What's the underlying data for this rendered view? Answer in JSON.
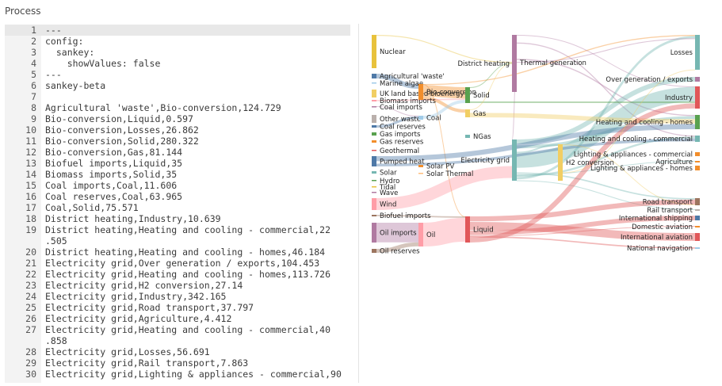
{
  "header": {
    "title": "Process"
  },
  "editor": {
    "lines": [
      {
        "n": "1",
        "text": "---"
      },
      {
        "n": "2",
        "text": "config:"
      },
      {
        "n": "3",
        "text": "  sankey:"
      },
      {
        "n": "4",
        "text": "    showValues: false"
      },
      {
        "n": "5",
        "text": "---"
      },
      {
        "n": "6",
        "text": "sankey-beta"
      },
      {
        "n": "7",
        "text": ""
      },
      {
        "n": "8",
        "text": "Agricultural 'waste',Bio-conversion,124.729"
      },
      {
        "n": "9",
        "text": "Bio-conversion,Liquid,0.597"
      },
      {
        "n": "10",
        "text": "Bio-conversion,Losses,26.862"
      },
      {
        "n": "11",
        "text": "Bio-conversion,Solid,280.322"
      },
      {
        "n": "12",
        "text": "Bio-conversion,Gas,81.144"
      },
      {
        "n": "13",
        "text": "Biofuel imports,Liquid,35"
      },
      {
        "n": "14",
        "text": "Biomass imports,Solid,35"
      },
      {
        "n": "15",
        "text": "Coal imports,Coal,11.606"
      },
      {
        "n": "16",
        "text": "Coal reserves,Coal,63.965"
      },
      {
        "n": "17",
        "text": "Coal,Solid,75.571"
      },
      {
        "n": "18",
        "text": "District heating,Industry,10.639"
      },
      {
        "n": "19",
        "text": "District heating,Heating and cooling - commercial,22"
      },
      {
        "n": "",
        "text": ".505"
      },
      {
        "n": "20",
        "text": "District heating,Heating and cooling - homes,46.184"
      },
      {
        "n": "21",
        "text": "Electricity grid,Over generation / exports,104.453"
      },
      {
        "n": "22",
        "text": "Electricity grid,Heating and cooling - homes,113.726"
      },
      {
        "n": "23",
        "text": "Electricity grid,H2 conversion,27.14"
      },
      {
        "n": "24",
        "text": "Electricity grid,Industry,342.165"
      },
      {
        "n": "25",
        "text": "Electricity grid,Road transport,37.797"
      },
      {
        "n": "26",
        "text": "Electricity grid,Agriculture,4.412"
      },
      {
        "n": "27",
        "text": "Electricity grid,Heating and cooling - commercial,40"
      },
      {
        "n": "",
        "text": ".858"
      },
      {
        "n": "28",
        "text": "Electricity grid,Losses,56.691"
      },
      {
        "n": "29",
        "text": "Electricity grid,Rail transport,7.863"
      },
      {
        "n": "30",
        "text": "Electricity grid,Lighting & appliances - commercial,90"
      }
    ]
  },
  "sankey": {
    "nodes": [
      {
        "name": "Nuclear",
        "color": "#e8c23c"
      },
      {
        "name": "Agricultural 'waste'",
        "color": "#4e79a7"
      },
      {
        "name": "Marine algae",
        "color": "#a0cbe8"
      },
      {
        "name": "UK land based bioenergy",
        "color": "#f1ce63"
      },
      {
        "name": "Biomass imports",
        "color": "#ff9da7"
      },
      {
        "name": "Coal imports",
        "color": "#b07aa1"
      },
      {
        "name": "Other waste",
        "color": "#bab0ac"
      },
      {
        "name": "Coal reserves",
        "color": "#4e79a7"
      },
      {
        "name": "Gas imports",
        "color": "#59a14f"
      },
      {
        "name": "Gas reserves",
        "color": "#f28e2b"
      },
      {
        "name": "Geothermal",
        "color": "#e15759"
      },
      {
        "name": "Pumped heat",
        "color": "#4e79a7"
      },
      {
        "name": "Solar",
        "color": "#76b7b2"
      },
      {
        "name": "Hydro",
        "color": "#59a14f"
      },
      {
        "name": "Tidal",
        "color": "#e8c23c"
      },
      {
        "name": "Wave",
        "color": "#b07aa1"
      },
      {
        "name": "Wind",
        "color": "#ff9da7"
      },
      {
        "name": "Biofuel imports",
        "color": "#9c755f"
      },
      {
        "name": "Oil imports",
        "color": "#b07aa1"
      },
      {
        "name": "Oil reserves",
        "color": "#9c755f"
      },
      {
        "name": "Bio-conversion",
        "color": "#f28e2b"
      },
      {
        "name": "Coal",
        "color": "#a0cbe8"
      },
      {
        "name": "Solar PV",
        "color": "#f28e2b"
      },
      {
        "name": "Solar Thermal",
        "color": "#ffbe7d"
      },
      {
        "name": "Oil",
        "color": "#ff9da7"
      },
      {
        "name": "Solid",
        "color": "#59a14f"
      },
      {
        "name": "Gas",
        "color": "#f1ce63"
      },
      {
        "name": "NGas",
        "color": "#76b7b2"
      },
      {
        "name": "Liquid",
        "color": "#e15759"
      },
      {
        "name": "District heating",
        "color": "#b07aa1"
      },
      {
        "name": "Thermal generation",
        "color": "#b07aa1"
      },
      {
        "name": "Electricity grid",
        "color": "#76b7b2"
      },
      {
        "name": "H2 conversion",
        "color": "#f1ce63"
      },
      {
        "name": "Losses",
        "color": "#76b7b2"
      },
      {
        "name": "Over generation / exports",
        "color": "#b07aa1"
      },
      {
        "name": "Industry",
        "color": "#e15759"
      },
      {
        "name": "Heating and cooling - homes",
        "color": "#59a14f"
      },
      {
        "name": "Heating and cooling - commercial",
        "color": "#76b7b2"
      },
      {
        "name": "Lighting & appliances - commercial",
        "color": "#f28e2b"
      },
      {
        "name": "Agriculture",
        "color": "#f28e2b"
      },
      {
        "name": "Lighting & appliances - homes",
        "color": "#f28e2b"
      },
      {
        "name": "Road transport",
        "color": "#9c755f"
      },
      {
        "name": "Rail transport",
        "color": "#bab0ac"
      },
      {
        "name": "International shipping",
        "color": "#4e79a7"
      },
      {
        "name": "Domestic aviation",
        "color": "#f28e2b"
      },
      {
        "name": "International aviation",
        "color": "#e15759"
      },
      {
        "name": "National navigation",
        "color": "#a0cbe8"
      }
    ],
    "links": [
      {
        "source": "Agricultural 'waste'",
        "target": "Bio-conversion",
        "value": 124.729
      },
      {
        "source": "Bio-conversion",
        "target": "Liquid",
        "value": 0.597
      },
      {
        "source": "Bio-conversion",
        "target": "Losses",
        "value": 26.862
      },
      {
        "source": "Bio-conversion",
        "target": "Solid",
        "value": 280.322
      },
      {
        "source": "Bio-conversion",
        "target": "Gas",
        "value": 81.144
      },
      {
        "source": "Biofuel imports",
        "target": "Liquid",
        "value": 35
      },
      {
        "source": "Biomass imports",
        "target": "Solid",
        "value": 35
      },
      {
        "source": "Coal imports",
        "target": "Coal",
        "value": 11.606
      },
      {
        "source": "Coal reserves",
        "target": "Coal",
        "value": 63.965
      },
      {
        "source": "Coal",
        "target": "Solid",
        "value": 75.571
      },
      {
        "source": "District heating",
        "target": "Industry",
        "value": 10.639
      },
      {
        "source": "District heating",
        "target": "Heating and cooling - commercial",
        "value": 22.505
      },
      {
        "source": "District heating",
        "target": "Heating and cooling - homes",
        "value": 46.184
      },
      {
        "source": "Electricity grid",
        "target": "Over generation / exports",
        "value": 104.453
      },
      {
        "source": "Electricity grid",
        "target": "Heating and cooling - homes",
        "value": 113.726
      },
      {
        "source": "Electricity grid",
        "target": "H2 conversion",
        "value": 27.14
      },
      {
        "source": "Electricity grid",
        "target": "Industry",
        "value": 342.165
      },
      {
        "source": "Electricity grid",
        "target": "Road transport",
        "value": 37.797
      },
      {
        "source": "Electricity grid",
        "target": "Agriculture",
        "value": 4.412
      },
      {
        "source": "Electricity grid",
        "target": "Heating and cooling - commercial",
        "value": 40.858
      },
      {
        "source": "Electricity grid",
        "target": "Losses",
        "value": 56.691
      },
      {
        "source": "Electricity grid",
        "target": "Rail transport",
        "value": 7.863
      },
      {
        "source": "Nuclear",
        "target": "Thermal generation",
        "value": 839.978
      },
      {
        "source": "Thermal generation",
        "target": "Losses",
        "value": 787.129
      },
      {
        "source": "Thermal generation",
        "target": "Electricity grid",
        "value": 525.531
      },
      {
        "source": "Thermal generation",
        "target": "District heating",
        "value": 79.329
      },
      {
        "source": "Solid",
        "target": "Thermal generation",
        "value": 400.12
      },
      {
        "source": "Solid",
        "target": "Industry",
        "value": 46.477
      },
      {
        "source": "Gas",
        "target": "Thermal generation",
        "value": 151.891
      },
      {
        "source": "Gas",
        "target": "Heating and cooling - homes",
        "value": 193.026
      },
      {
        "source": "Wind",
        "target": "Electricity grid",
        "value": 289.366
      },
      {
        "source": "Pumped heat",
        "target": "Heating and cooling - homes",
        "value": 193.026
      },
      {
        "source": "Pumped heat",
        "target": "Heating and cooling - commercial",
        "value": 70.672
      },
      {
        "source": "Oil imports",
        "target": "Oil",
        "value": 504.287
      },
      {
        "source": "Oil reserves",
        "target": "Oil",
        "value": 107.703
      },
      {
        "source": "Oil",
        "target": "Liquid",
        "value": 611.99
      },
      {
        "source": "Liquid",
        "target": "Road transport",
        "value": 135.835
      },
      {
        "source": "Liquid",
        "target": "International aviation",
        "value": 206.267
      },
      {
        "source": "Liquid",
        "target": "International shipping",
        "value": 128.69
      },
      {
        "source": "Liquid",
        "target": "Domestic aviation",
        "value": 14.458
      },
      {
        "source": "Liquid",
        "target": "National navigation",
        "value": 33.218
      },
      {
        "source": "Liquid",
        "target": "Industry",
        "value": 121.066
      },
      {
        "source": "H2 conversion",
        "target": "Road transport",
        "value": 20.897
      },
      {
        "source": "H2 conversion",
        "target": "Losses",
        "value": 6.242
      }
    ]
  }
}
